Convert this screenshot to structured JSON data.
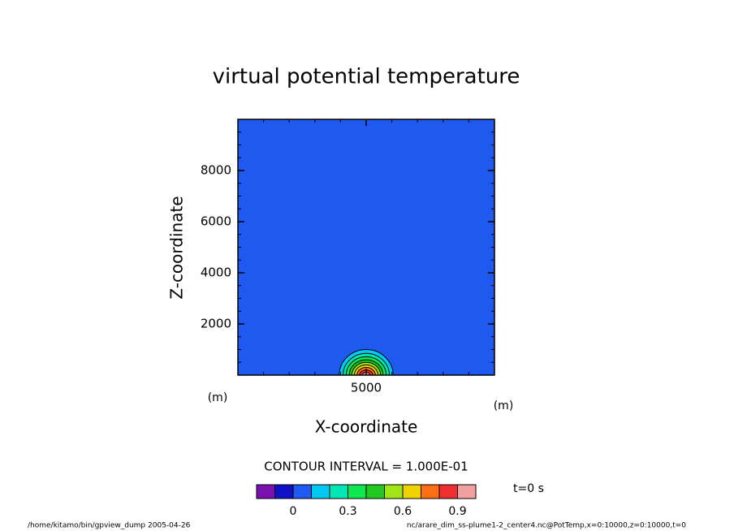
{
  "chart_data": {
    "type": "contour",
    "title": "virtual potential temperature",
    "xlabel": "X-coordinate",
    "ylabel": "Z-coordinate",
    "xunit": "(m)",
    "yunit": "(m)",
    "xlim": [
      0,
      10000
    ],
    "ylim": [
      0,
      10000
    ],
    "xticks": [
      5000
    ],
    "yticks": [
      2000,
      4000,
      6000,
      8000
    ],
    "xticks_minor": [
      0,
      1000,
      2000,
      3000,
      4000,
      5000,
      6000,
      7000,
      8000,
      9000,
      10000
    ],
    "yticks_minor": [
      0,
      500,
      1000,
      1500,
      2000,
      2500,
      3000,
      3500,
      4000,
      4500,
      5000,
      5500,
      6000,
      6500,
      7000,
      7500,
      8000,
      8500,
      9000,
      9500,
      10000
    ],
    "background_level": 0,
    "center_x": 5000,
    "contours": [
      {
        "level": 0.1,
        "x_radius": 1050,
        "z_radius": 1000
      },
      {
        "level": 0.2,
        "x_radius": 900,
        "z_radius": 850
      },
      {
        "level": 0.3,
        "x_radius": 780,
        "z_radius": 720
      },
      {
        "level": 0.4,
        "x_radius": 660,
        "z_radius": 600
      },
      {
        "level": 0.5,
        "x_radius": 560,
        "z_radius": 500
      },
      {
        "level": 0.6,
        "x_radius": 460,
        "z_radius": 400
      },
      {
        "level": 0.7,
        "x_radius": 360,
        "z_radius": 300
      },
      {
        "level": 0.8,
        "x_radius": 260,
        "z_radius": 200
      },
      {
        "level": 0.9,
        "x_radius": 150,
        "z_radius": 110
      }
    ],
    "contour_interval": "CONTOUR INTERVAL = 1.000E-01",
    "time_label": "t=0 s",
    "colorbar": {
      "boundaries": [
        -0.2,
        -0.1,
        0,
        0.1,
        0.2,
        0.3,
        0.4,
        0.5,
        0.6,
        0.7,
        0.8,
        0.9,
        1.0
      ],
      "colors": [
        "#7a10b0",
        "#1010c8",
        "#1f5af0",
        "#00c8f0",
        "#00e6b4",
        "#10e650",
        "#20c820",
        "#a0e614",
        "#f0d200",
        "#ff6e14",
        "#f03030",
        "#f0a0a0"
      ],
      "ticks": [
        0,
        0.3,
        0.6,
        0.9
      ]
    },
    "footer_left": "/home/kitamo/bin/gpview_dump  2005-04-26",
    "footer_right": "nc/arare_dim_ss-plume1-2_center4.nc@PotTemp,x=0:10000,z=0:10000,t=0"
  }
}
